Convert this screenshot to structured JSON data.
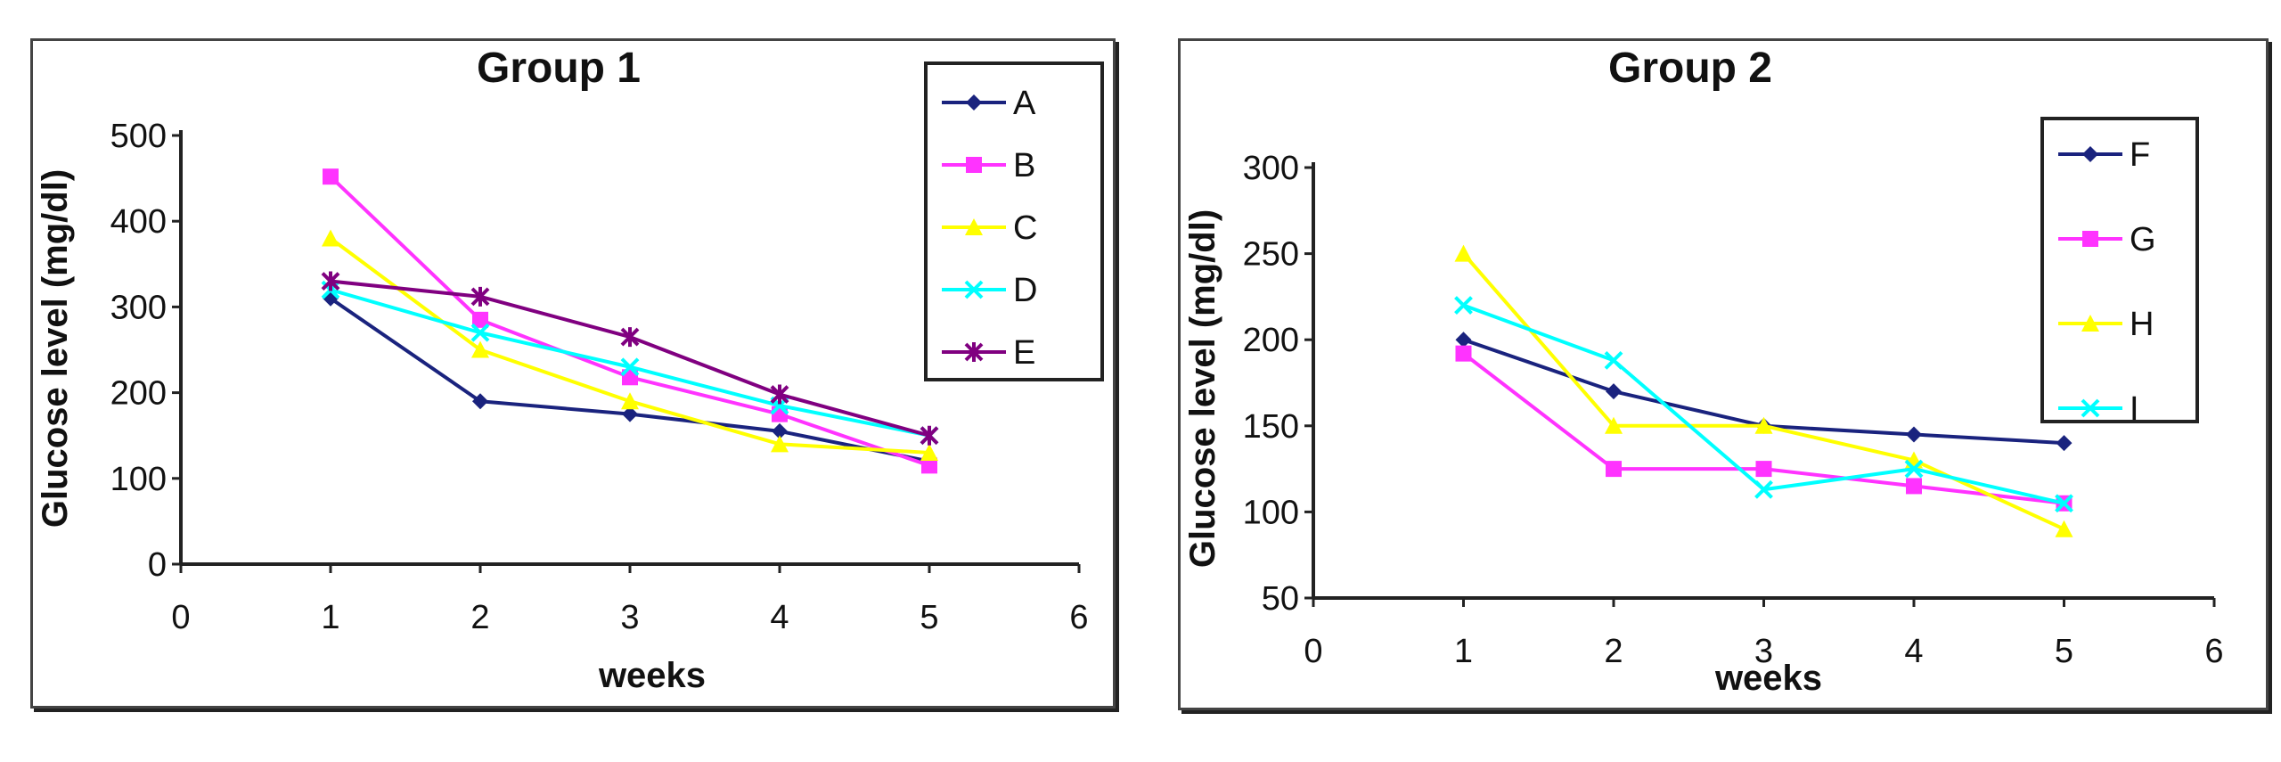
{
  "chart_data": [
    {
      "type": "line",
      "title": "Group 1",
      "xlabel": "weeks",
      "ylabel": "Glucose level (mg/dl)",
      "xlim": [
        0,
        6
      ],
      "ylim": [
        0,
        500
      ],
      "xticks": [
        "0",
        "1",
        "2",
        "3",
        "4",
        "5",
        "6"
      ],
      "yticks": [
        "0",
        "100",
        "200",
        "300",
        "400",
        "500"
      ],
      "x": [
        1,
        2,
        3,
        4,
        5
      ],
      "grid": false,
      "legend_position": "top-right",
      "series": [
        {
          "name": "A",
          "color": "#1a237e",
          "marker": "diamond",
          "values": [
            310,
            190,
            175,
            155,
            120
          ]
        },
        {
          "name": "B",
          "color": "#ff33ff",
          "marker": "square",
          "values": [
            452,
            285,
            218,
            175,
            115
          ]
        },
        {
          "name": "C",
          "color": "#ffff00",
          "marker": "triangle",
          "values": [
            380,
            250,
            190,
            140,
            130
          ]
        },
        {
          "name": "D",
          "color": "#00ffff",
          "marker": "x",
          "values": [
            320,
            270,
            230,
            185,
            150
          ]
        },
        {
          "name": "E",
          "color": "#800080",
          "marker": "star",
          "values": [
            330,
            312,
            265,
            198,
            150
          ]
        }
      ]
    },
    {
      "type": "line",
      "title": "Group 2",
      "xlabel": "weeks",
      "ylabel": "Glucose level (mg/dl)",
      "xlim": [
        0,
        6
      ],
      "ylim": [
        50,
        300
      ],
      "xticks": [
        "0",
        "1",
        "2",
        "3",
        "4",
        "5",
        "6"
      ],
      "yticks": [
        "50",
        "100",
        "150",
        "200",
        "250",
        "300"
      ],
      "x": [
        1,
        2,
        3,
        4,
        5
      ],
      "grid": false,
      "legend_position": "top-right",
      "series": [
        {
          "name": "F",
          "color": "#1a237e",
          "marker": "diamond",
          "values": [
            200,
            170,
            150,
            145,
            140
          ]
        },
        {
          "name": "G",
          "color": "#ff33ff",
          "marker": "square",
          "values": [
            192,
            125,
            125,
            115,
            105
          ]
        },
        {
          "name": "H",
          "color": "#ffff00",
          "marker": "triangle",
          "values": [
            250,
            150,
            150,
            130,
            90
          ]
        },
        {
          "name": "I",
          "color": "#00ffff",
          "marker": "x",
          "values": [
            220,
            188,
            113,
            125,
            105
          ]
        }
      ]
    }
  ]
}
